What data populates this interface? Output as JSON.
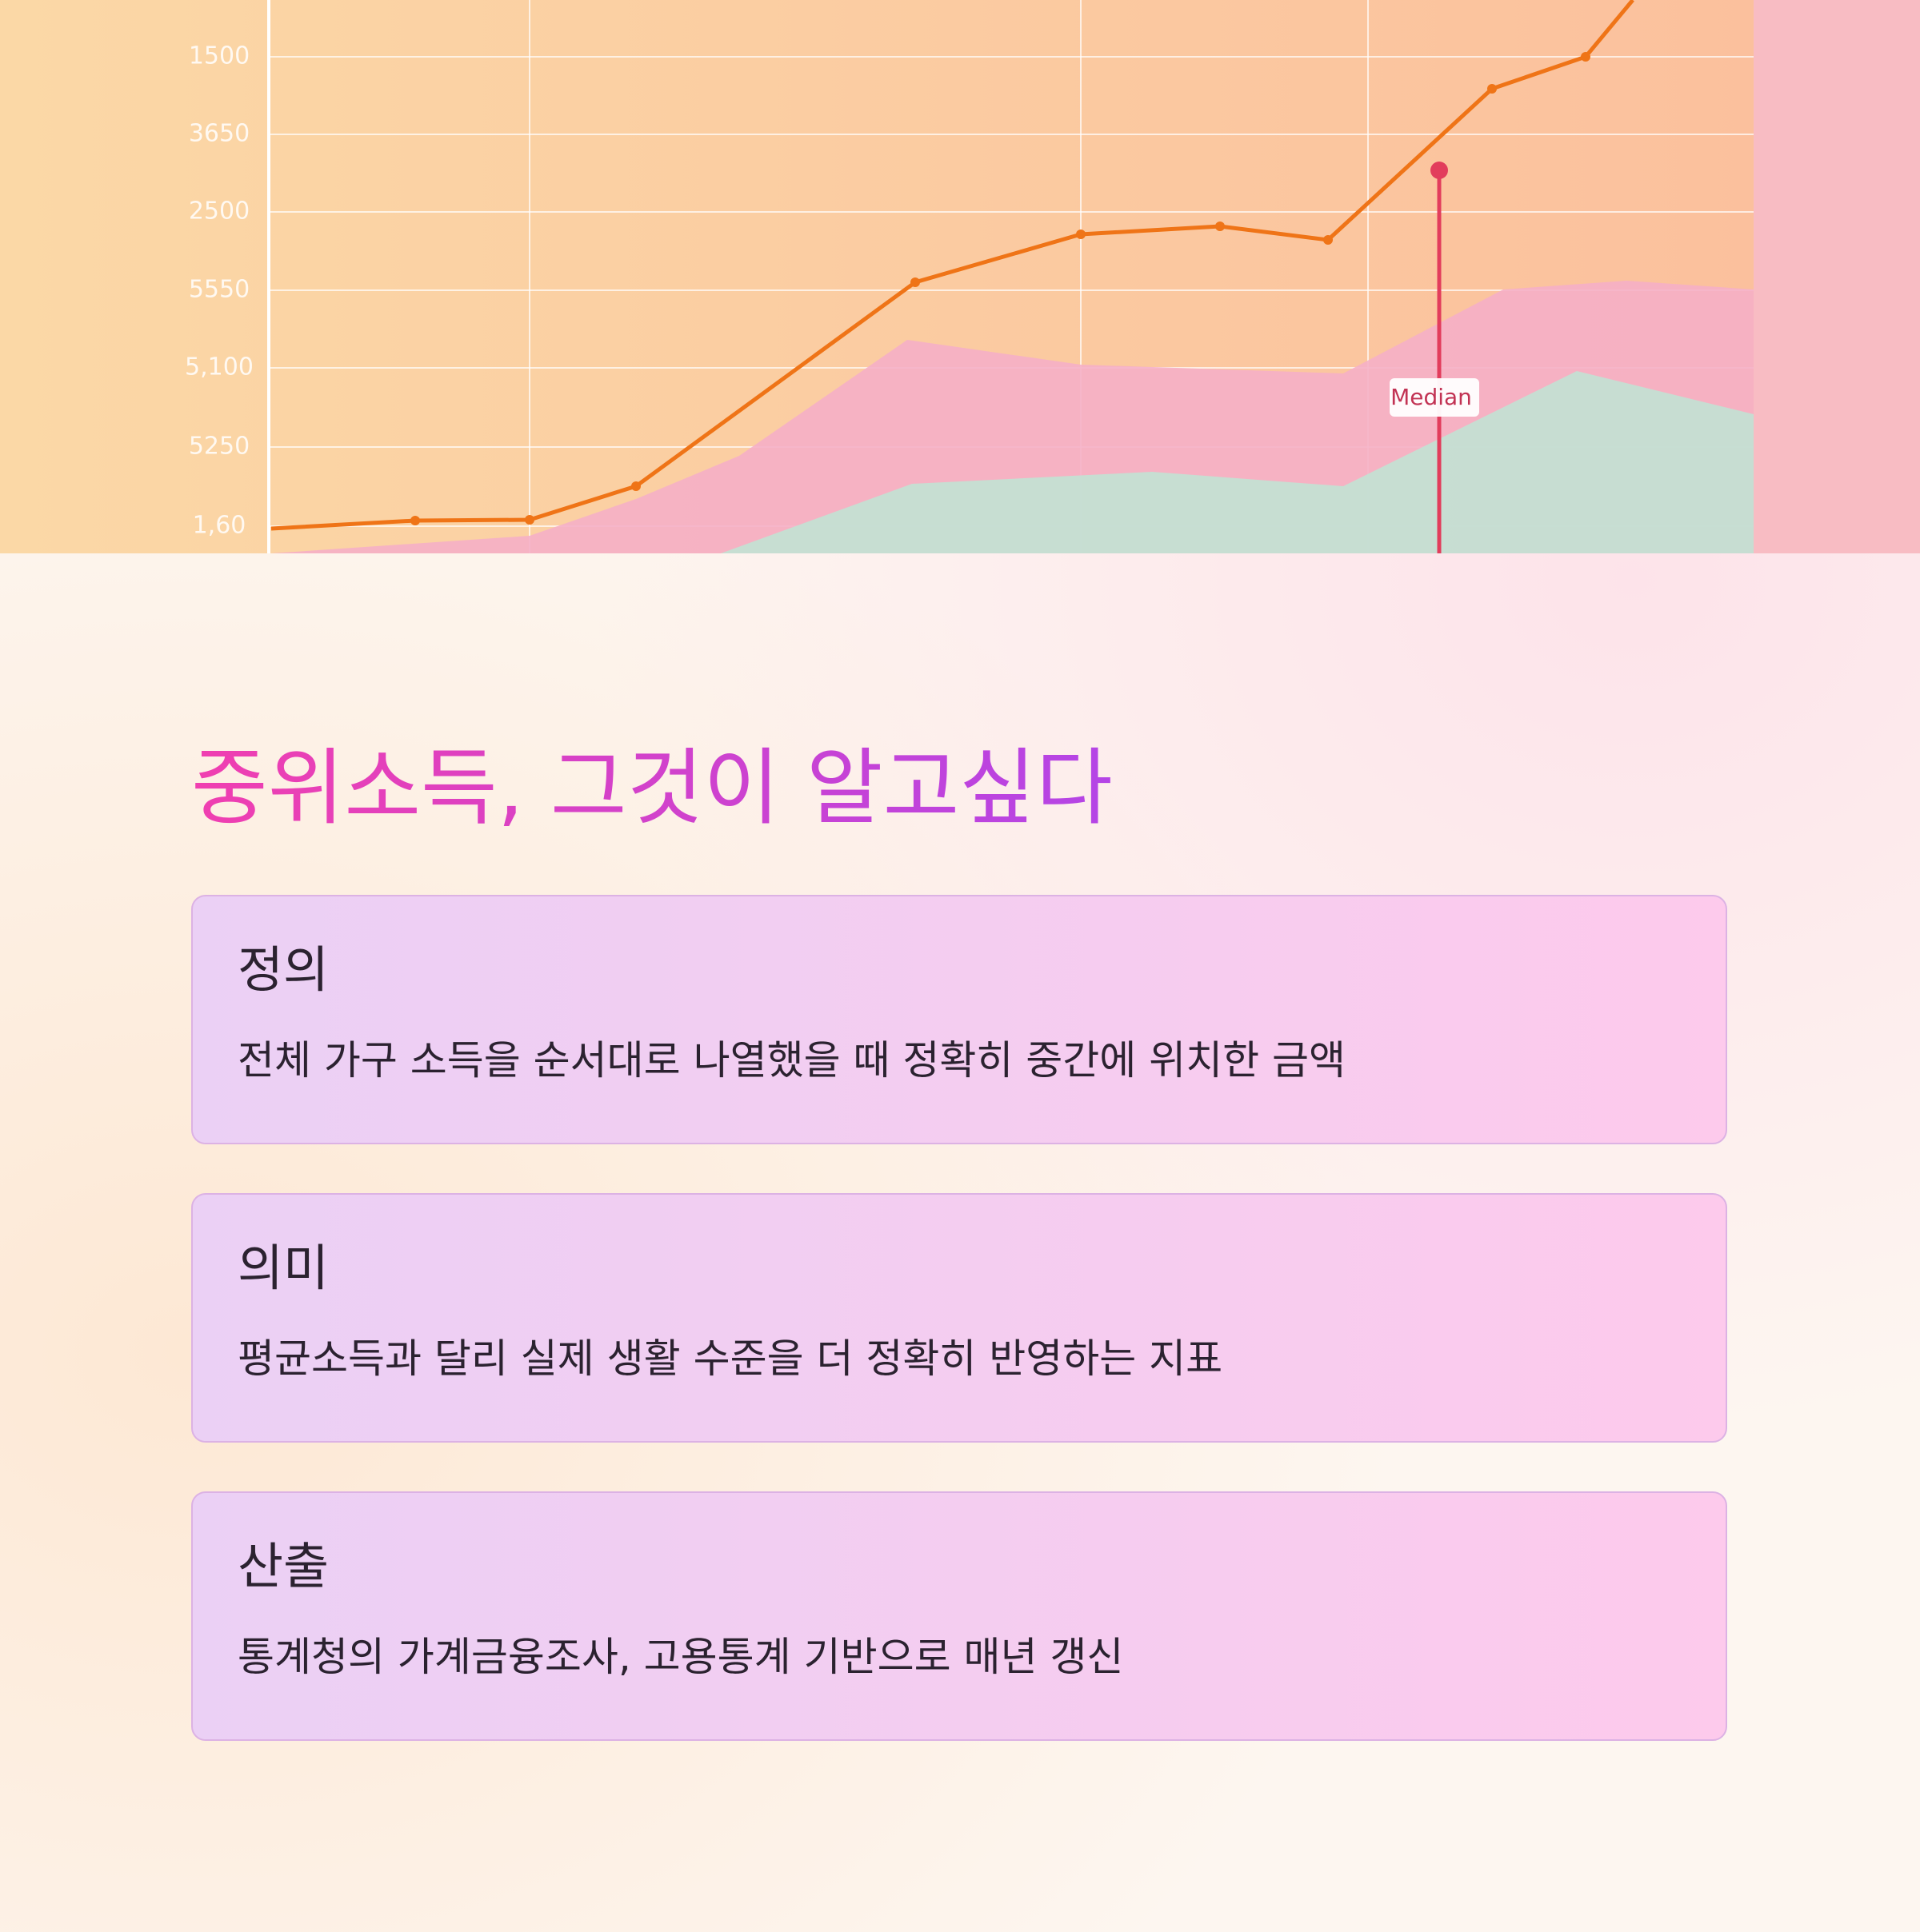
{
  "hero_image": {
    "axis_labels": [
      "1500",
      "3650",
      "2500",
      "5550",
      "5,100",
      "5250",
      "1,60"
    ],
    "marker_label": "Median"
  },
  "title": "중위소득, 그것이 알고싶다",
  "cards": [
    {
      "heading": "정의",
      "body": "전체 가구 소득을 순서대로 나열했을 때 정확히 중간에 위치한 금액"
    },
    {
      "heading": "의미",
      "body": "평균소득과 달리 실제 생활 수준을 더 정확히 반영하는 지표"
    },
    {
      "heading": "산출",
      "body": "통계청의 가계금융조사, 고용통계 기반으로 매년 갱신"
    }
  ]
}
